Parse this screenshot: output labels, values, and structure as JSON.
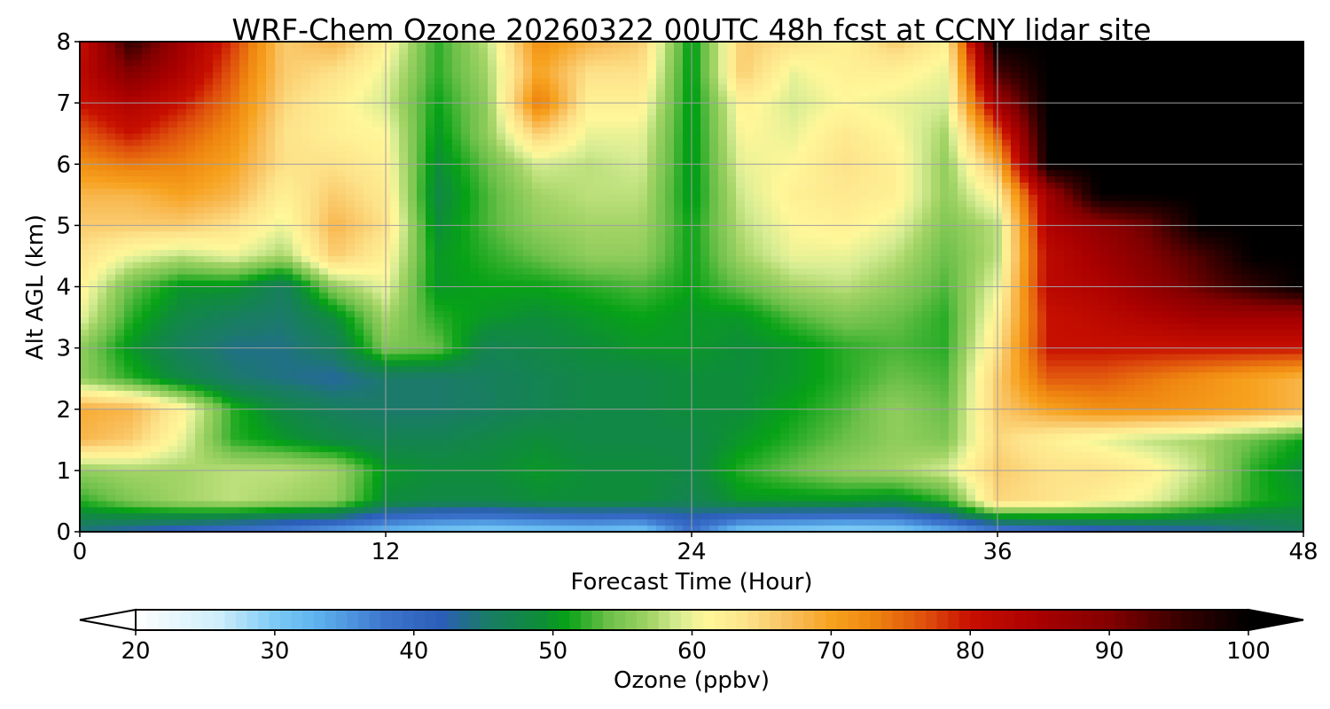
{
  "chart_data": {
    "type": "heatmap",
    "title": "WRF-Chem Ozone  20260322 00UTC 48h fcst at CCNY lidar site",
    "xlabel": "Forecast Time (Hour)",
    "ylabel": "Alt AGL (km)",
    "xlim": [
      0,
      48
    ],
    "ylim": [
      0,
      8
    ],
    "x_ticks": [
      "0",
      "12",
      "24",
      "36",
      "48"
    ],
    "y_ticks": [
      "0",
      "1",
      "2",
      "3",
      "4",
      "5",
      "6",
      "7",
      "8"
    ],
    "grid": true,
    "x": [
      0,
      2,
      4,
      6,
      8,
      10,
      12,
      14,
      16,
      18,
      20,
      22,
      24,
      26,
      28,
      30,
      32,
      34,
      36,
      38,
      40,
      42,
      44,
      46,
      48
    ],
    "y": [
      0,
      0.5,
      1,
      1.5,
      2,
      2.5,
      3,
      3.5,
      4,
      4.5,
      5,
      5.5,
      6,
      6.5,
      7,
      7.5,
      8
    ],
    "z": [
      [
        44,
        42,
        40,
        38,
        36,
        34,
        32,
        30,
        29,
        30,
        31,
        30,
        38,
        30,
        29,
        28,
        29,
        33,
        36,
        38,
        40,
        41,
        42,
        44,
        46
      ],
      [
        52,
        55,
        57,
        58,
        57,
        56,
        49,
        48,
        48,
        49,
        49,
        49,
        47,
        50,
        50,
        50,
        49,
        52,
        65,
        64,
        62,
        60,
        56,
        52,
        50
      ],
      [
        56,
        57,
        57,
        58,
        58,
        57,
        50,
        49,
        49,
        50,
        49,
        49,
        48,
        52,
        54,
        56,
        57,
        59,
        66,
        64,
        64,
        62,
        58,
        52,
        49
      ],
      [
        68,
        66,
        60,
        52,
        50,
        48,
        47,
        47,
        48,
        49,
        48,
        48,
        48,
        50,
        52,
        54,
        56,
        55,
        65,
        62,
        60,
        58,
        57,
        54,
        51
      ],
      [
        69,
        68,
        62,
        52,
        48,
        46,
        45,
        45,
        46,
        47,
        48,
        48,
        49,
        49,
        51,
        53,
        56,
        54,
        66,
        70,
        72,
        72,
        71,
        70,
        68
      ],
      [
        56,
        52,
        48,
        45,
        44,
        43,
        45,
        45,
        46,
        47,
        48,
        48,
        49,
        49,
        50,
        52,
        54,
        53,
        66,
        76,
        76,
        74,
        72,
        70,
        68
      ],
      [
        56,
        50,
        46,
        44,
        44,
        46,
        55,
        54,
        47,
        48,
        49,
        50,
        50,
        49,
        50,
        52,
        53,
        52,
        64,
        80,
        80,
        80,
        80,
        80,
        80
      ],
      [
        60,
        52,
        48,
        46,
        45,
        49,
        57,
        52,
        50,
        49,
        50,
        51,
        50,
        50,
        53,
        55,
        54,
        52,
        62,
        80,
        82,
        84,
        86,
        86,
        86
      ],
      [
        62,
        54,
        50,
        50,
        46,
        56,
        60,
        50,
        51,
        51,
        52,
        53,
        51,
        54,
        57,
        58,
        56,
        53,
        60,
        82,
        84,
        88,
        92,
        96,
        100
      ],
      [
        64,
        60,
        58,
        60,
        57,
        66,
        62,
        50,
        52,
        54,
        56,
        56,
        51,
        57,
        60,
        60,
        58,
        54,
        58,
        82,
        86,
        90,
        94,
        100,
        100
      ],
      [
        66,
        66,
        66,
        64,
        60,
        68,
        64,
        49,
        53,
        56,
        57,
        57,
        51,
        58,
        61,
        62,
        60,
        55,
        58,
        84,
        88,
        92,
        100,
        100,
        100
      ],
      [
        68,
        68,
        70,
        68,
        62,
        66,
        63,
        48,
        53,
        57,
        58,
        58,
        50,
        59,
        62,
        63,
        62,
        56,
        62,
        86,
        100,
        100,
        100,
        100,
        100
      ],
      [
        72,
        74,
        73,
        70,
        64,
        64,
        62,
        49,
        54,
        59,
        58,
        59,
        50,
        60,
        61,
        64,
        62,
        56,
        68,
        100,
        100,
        100,
        100,
        100,
        100
      ],
      [
        76,
        80,
        76,
        72,
        64,
        62,
        61,
        50,
        56,
        66,
        60,
        60,
        50,
        61,
        60,
        63,
        61,
        57,
        76,
        100,
        100,
        100,
        100,
        100,
        100
      ],
      [
        80,
        84,
        80,
        74,
        65,
        62,
        59,
        51,
        56,
        74,
        62,
        62,
        50,
        62,
        59,
        61,
        60,
        59,
        86,
        100,
        100,
        100,
        100,
        100,
        100
      ],
      [
        82,
        90,
        84,
        76,
        66,
        64,
        60,
        52,
        57,
        70,
        64,
        64,
        50,
        66,
        60,
        62,
        62,
        60,
        94,
        100,
        100,
        100,
        100,
        100,
        100
      ],
      [
        80,
        96,
        86,
        78,
        66,
        68,
        62,
        52,
        58,
        72,
        68,
        66,
        50,
        66,
        64,
        62,
        66,
        62,
        100,
        100,
        100,
        100,
        100,
        100,
        100
      ]
    ],
    "colorbar": {
      "label": "Ozone  (ppbv)",
      "min": 20,
      "max": 100,
      "ticks": [
        "20",
        "30",
        "40",
        "50",
        "60",
        "70",
        "80",
        "90",
        "100"
      ],
      "extend": "both",
      "colors": [
        {
          "v": 20,
          "c": "#ffffff"
        },
        {
          "v": 26,
          "c": "#cdeefa"
        },
        {
          "v": 30,
          "c": "#7ccaf5"
        },
        {
          "v": 33,
          "c": "#5eb3ef"
        },
        {
          "v": 38,
          "c": "#3c74cc"
        },
        {
          "v": 42,
          "c": "#2b5eb8"
        },
        {
          "v": 45,
          "c": "#1b7a6a"
        },
        {
          "v": 49,
          "c": "#0e8c3a"
        },
        {
          "v": 51,
          "c": "#07a216"
        },
        {
          "v": 54,
          "c": "#6cc04a"
        },
        {
          "v": 57,
          "c": "#a3d466"
        },
        {
          "v": 59,
          "c": "#d6ec93"
        },
        {
          "v": 61,
          "c": "#fff799"
        },
        {
          "v": 64,
          "c": "#fde28a"
        },
        {
          "v": 67,
          "c": "#f9c05e"
        },
        {
          "v": 70,
          "c": "#f7a21f"
        },
        {
          "v": 73,
          "c": "#ef8610"
        },
        {
          "v": 77,
          "c": "#dd4b0c"
        },
        {
          "v": 80,
          "c": "#c70f00"
        },
        {
          "v": 85,
          "c": "#a90000"
        },
        {
          "v": 90,
          "c": "#830000"
        },
        {
          "v": 95,
          "c": "#3a0000"
        },
        {
          "v": 100,
          "c": "#000000"
        }
      ]
    }
  }
}
